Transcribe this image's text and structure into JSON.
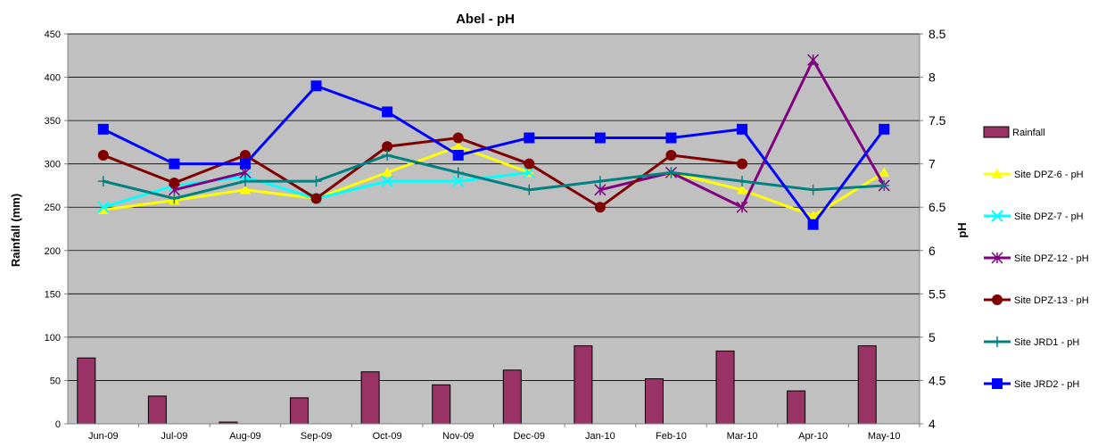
{
  "chart_data": {
    "type": "bar+line",
    "title": "Abel - pH",
    "ylabel_left": "Rainfall (mm)",
    "ylabel_right": "pH",
    "categories": [
      "Jun-09",
      "Jul-09",
      "Aug-09",
      "Sep-09",
      "Oct-09",
      "Nov-09",
      "Dec-09",
      "Jan-10",
      "Feb-10",
      "Mar-10",
      "Apr-10",
      "May-10"
    ],
    "ylim_left": [
      0,
      450
    ],
    "yticks_left": [
      0,
      50,
      100,
      150,
      200,
      250,
      300,
      350,
      400,
      450
    ],
    "ylim_right": [
      4,
      8.5
    ],
    "yticks_right": [
      "4",
      "4.5",
      "5",
      "5.5",
      "6",
      "6.5",
      "7",
      "7.5",
      "8",
      "8.5"
    ],
    "grid": true,
    "legend_position": "right",
    "plot_background": "#c0c0c0",
    "bars": {
      "name": "Rainfall",
      "color": "#993366",
      "values": [
        76,
        32,
        2,
        30,
        60,
        45,
        62,
        90,
        52,
        84,
        38,
        90
      ]
    },
    "series": [
      {
        "name": "Site DPZ-6 - pH",
        "color": "#ffff00",
        "marker": "triangle",
        "values": [
          6.47,
          6.58,
          6.7,
          6.6,
          6.9,
          7.2,
          6.9,
          null,
          6.9,
          6.7,
          6.4,
          6.9
        ]
      },
      {
        "name": "Site DPZ-7 - pH",
        "color": "#00ffff",
        "marker": "x",
        "values": [
          6.5,
          6.75,
          6.85,
          6.6,
          6.8,
          6.8,
          6.9,
          null,
          null,
          null,
          null,
          null
        ]
      },
      {
        "name": "Site DPZ-12 - pH",
        "color": "#800080",
        "marker": "asterisk",
        "values": [
          null,
          6.7,
          6.9,
          null,
          null,
          null,
          null,
          6.7,
          6.9,
          6.5,
          8.2,
          6.75
        ]
      },
      {
        "name": "Site DPZ-13 - pH",
        "color": "#800000",
        "marker": "circle",
        "values": [
          7.1,
          6.78,
          7.1,
          6.6,
          7.2,
          7.3,
          7.0,
          6.5,
          7.1,
          7.0,
          null,
          null
        ]
      },
      {
        "name": "Site JRD1 - pH",
        "color": "#008080",
        "marker": "plus",
        "values": [
          6.8,
          6.6,
          6.8,
          6.8,
          7.1,
          6.9,
          6.7,
          6.8,
          6.9,
          6.8,
          6.7,
          6.75
        ]
      },
      {
        "name": "Site JRD2 - pH",
        "color": "#0000ff",
        "marker": "square",
        "values": [
          7.4,
          7.0,
          7.0,
          7.9,
          7.6,
          7.1,
          7.3,
          7.3,
          7.3,
          7.4,
          6.3,
          7.4
        ]
      }
    ]
  }
}
